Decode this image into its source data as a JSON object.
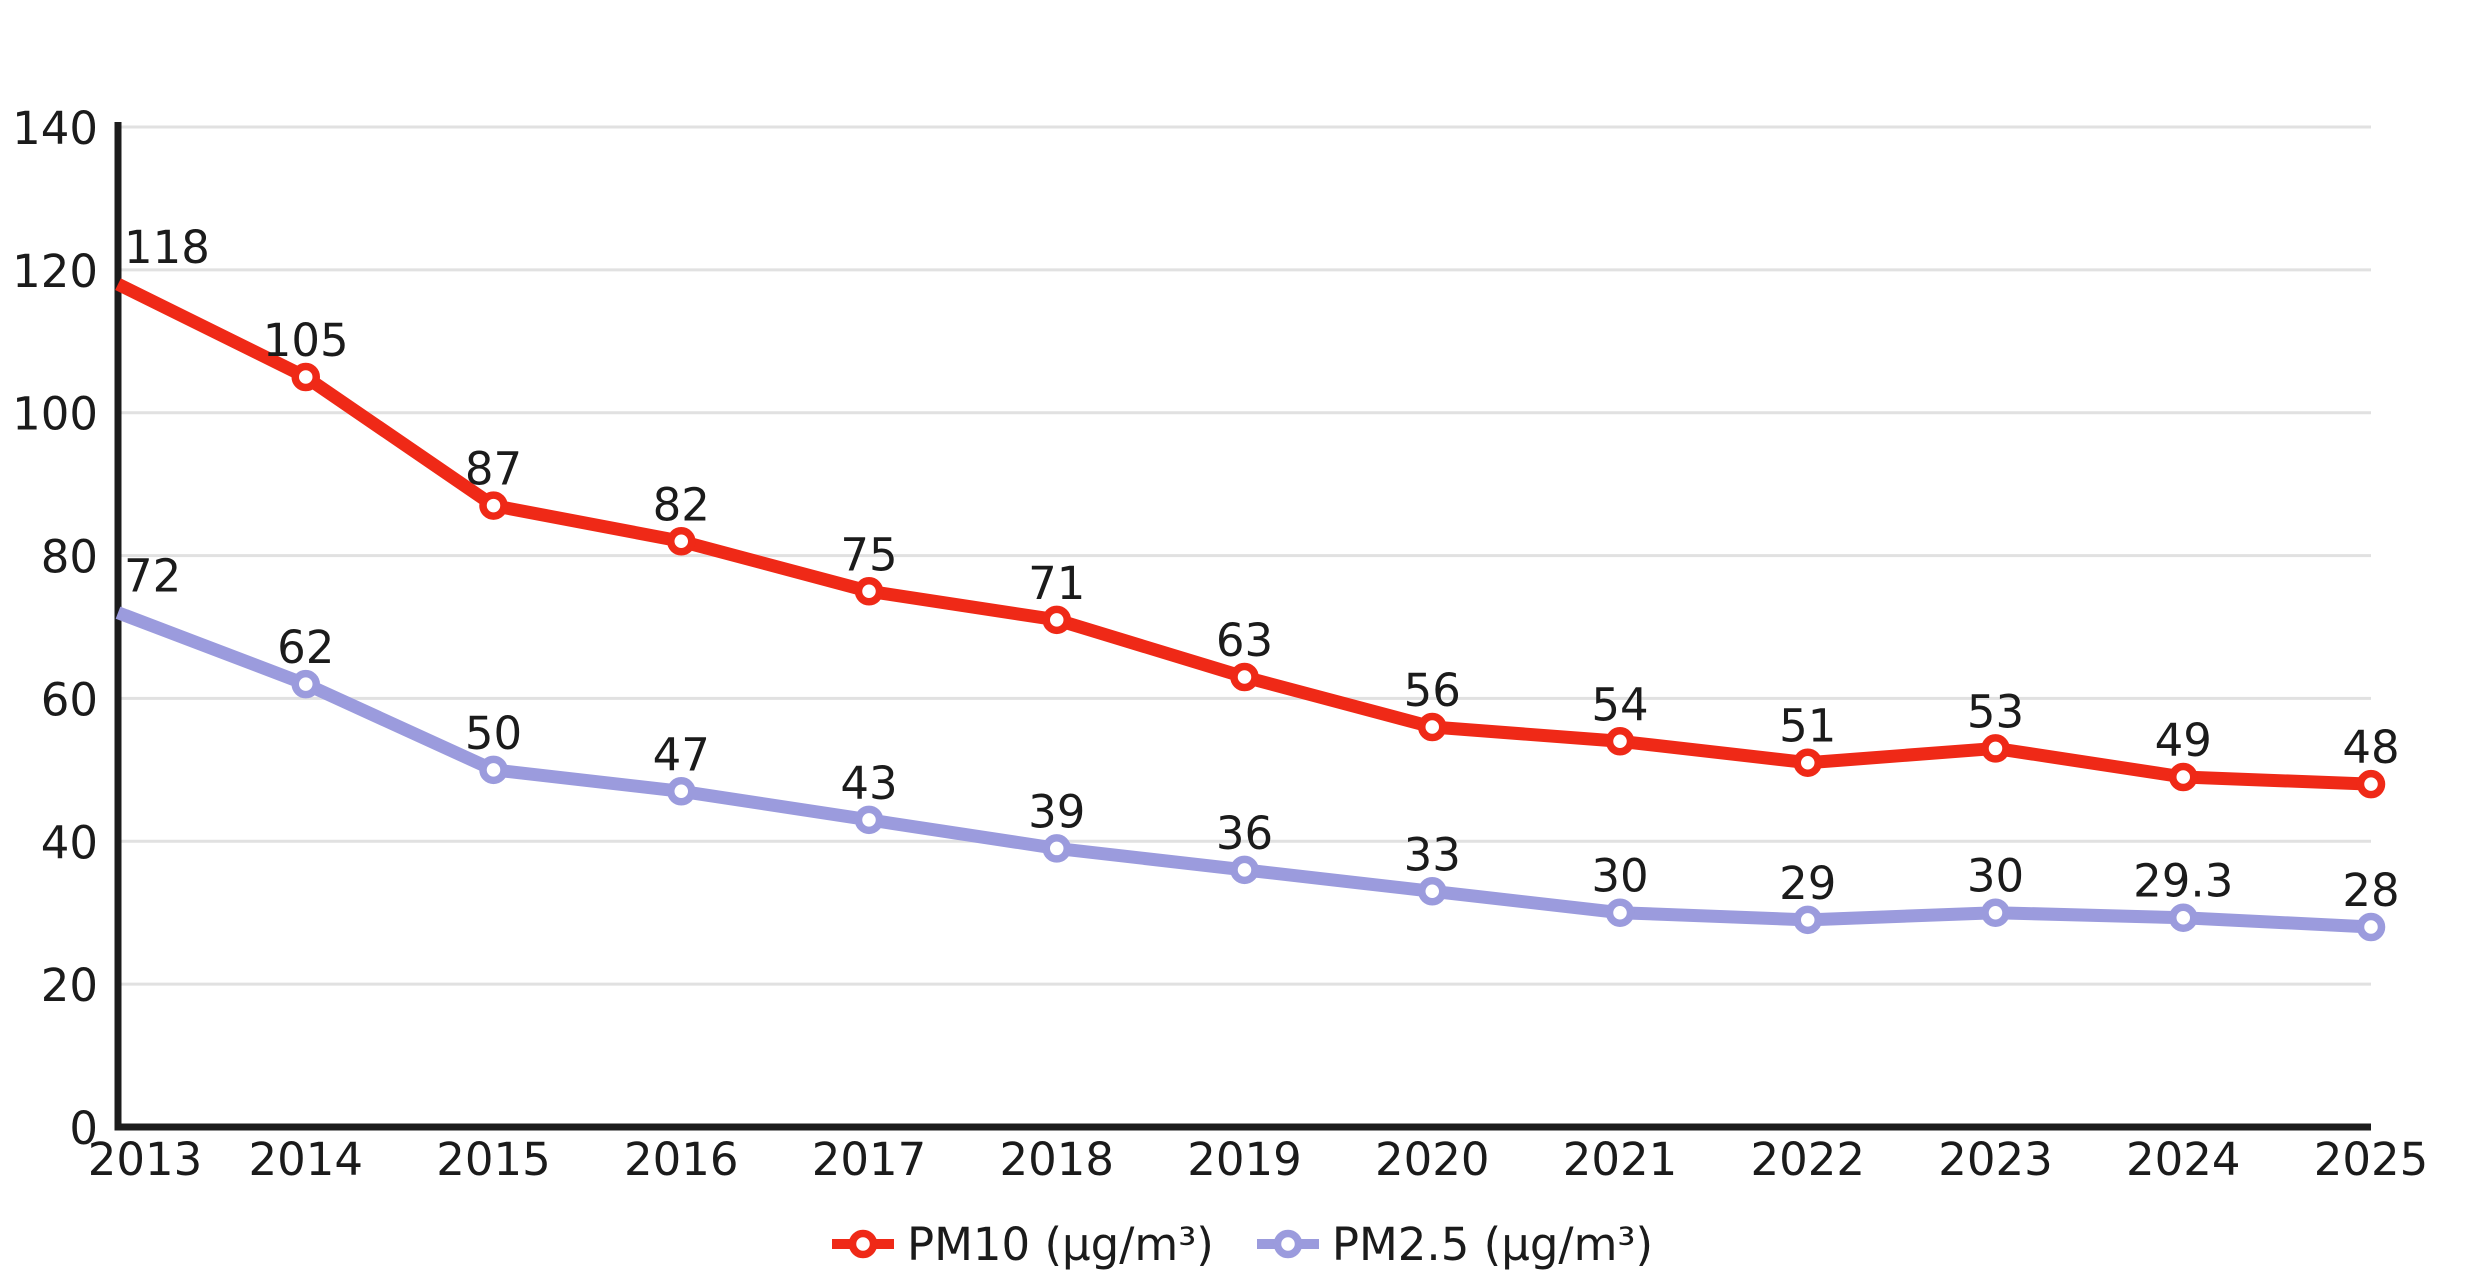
{
  "chart_data": {
    "type": "line",
    "title": "",
    "xlabel": "",
    "ylabel": "",
    "x": [
      "2013",
      "2014",
      "2015",
      "2016",
      "2017",
      "2018",
      "2019",
      "2020",
      "2021",
      "2022",
      "2023",
      "2024",
      "2025"
    ],
    "series": [
      {
        "name": "PM10 (μg/m³)",
        "color": "#ef2917",
        "values": [
          118,
          105,
          87,
          82,
          75,
          71,
          63,
          56,
          54,
          51,
          53,
          49,
          48
        ],
        "point_labels": [
          "118",
          "105",
          "87",
          "82",
          "75",
          "71",
          "63",
          "56",
          "54",
          "51",
          "53",
          "49",
          "48"
        ]
      },
      {
        "name": "PM2.5 (μg/m³)",
        "color": "#9b9bdd",
        "values": [
          72,
          62,
          50,
          47,
          43,
          39,
          36,
          33,
          30,
          29,
          30,
          29.3,
          28
        ],
        "point_labels": [
          "72",
          "62",
          "50",
          "47",
          "43",
          "39",
          "36",
          "33",
          "30",
          "29",
          "30",
          "29.3",
          "28"
        ]
      }
    ],
    "ylim": [
      0,
      140
    ],
    "yticks": [
      0,
      20,
      40,
      60,
      80,
      100,
      120,
      140
    ],
    "ytick_labels": [
      "0",
      "20",
      "40",
      "60",
      "80",
      "100",
      "120",
      "140"
    ],
    "grid": "horizontal",
    "legend_position": "bottom-center",
    "colors": {
      "axis": "#1c1c1c",
      "gridline": "#e1e1e1",
      "text": "#1b1b1b",
      "marker_fill": "#ffffff",
      "background": "#ffffff"
    }
  }
}
